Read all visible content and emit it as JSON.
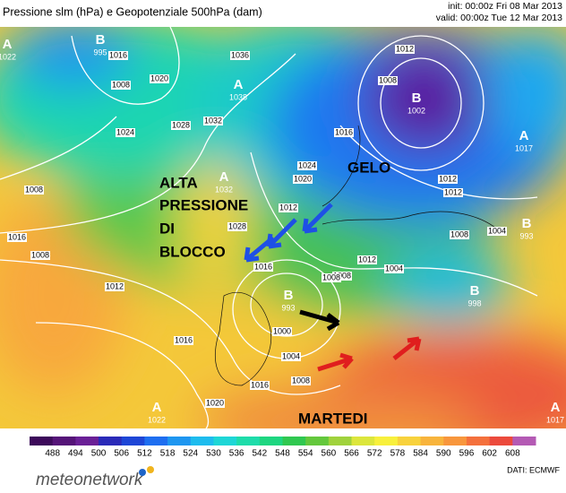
{
  "header": {
    "title": "Pressione slm (hPa) e Geopotenziale 500hPa (dam)",
    "init": "init: 00:00z Fri 08 Mar 2013",
    "valid": "valid: 00:00z Tue 12 Mar 2013"
  },
  "annotations": [
    "ALTA",
    "PRESSIONE",
    "DI",
    "BLOCCO",
    "GELO",
    "MARTEDI"
  ],
  "centers": [
    {
      "letter": "B",
      "value": "995"
    },
    {
      "letter": "A",
      "value": "1022"
    },
    {
      "letter": "A",
      "value": "1038"
    },
    {
      "letter": "B",
      "value": "1002"
    },
    {
      "letter": "A",
      "value": "1017"
    },
    {
      "letter": "A",
      "value": "1032"
    },
    {
      "letter": "B",
      "value": "993"
    },
    {
      "letter": "B",
      "value": "993"
    },
    {
      "letter": "B",
      "value": "998"
    },
    {
      "letter": "A",
      "value": "1022"
    },
    {
      "letter": "A",
      "value": "1017"
    }
  ],
  "isobar_labels": [
    "1012",
    "1008",
    "1016",
    "1020",
    "1024",
    "1028",
    "1032",
    "1036",
    "1024",
    "1028",
    "1016",
    "1012",
    "1008",
    "1024",
    "1020",
    "1016",
    "1012",
    "1008",
    "1004",
    "1000",
    "1016",
    "1012",
    "1008",
    "1004",
    "1016",
    "1008",
    "1012",
    "1016",
    "1020",
    "1008",
    "1012",
    "1004",
    "1008",
    "1008"
  ],
  "colorbar": {
    "ticks": [
      488,
      494,
      500,
      506,
      512,
      518,
      524,
      530,
      536,
      542,
      548,
      554,
      560,
      566,
      572,
      578,
      584,
      590,
      596,
      602,
      608
    ],
    "colors": [
      "#3c0a5a",
      "#551478",
      "#6a2096",
      "#2a2ab8",
      "#1e46d6",
      "#1e6ef0",
      "#1e96f0",
      "#1ebcee",
      "#1ed6d6",
      "#1edcaa",
      "#1ed680",
      "#30c850",
      "#64c83c",
      "#a0d23c",
      "#dce63c",
      "#f8f03c",
      "#f8d23c",
      "#f8b43c",
      "#f8963c",
      "#f4703c",
      "#ec4a3c",
      "#b45ab4"
    ]
  },
  "footer": {
    "brand": "meteonetwork",
    "source": "DATI: ECMWF"
  }
}
